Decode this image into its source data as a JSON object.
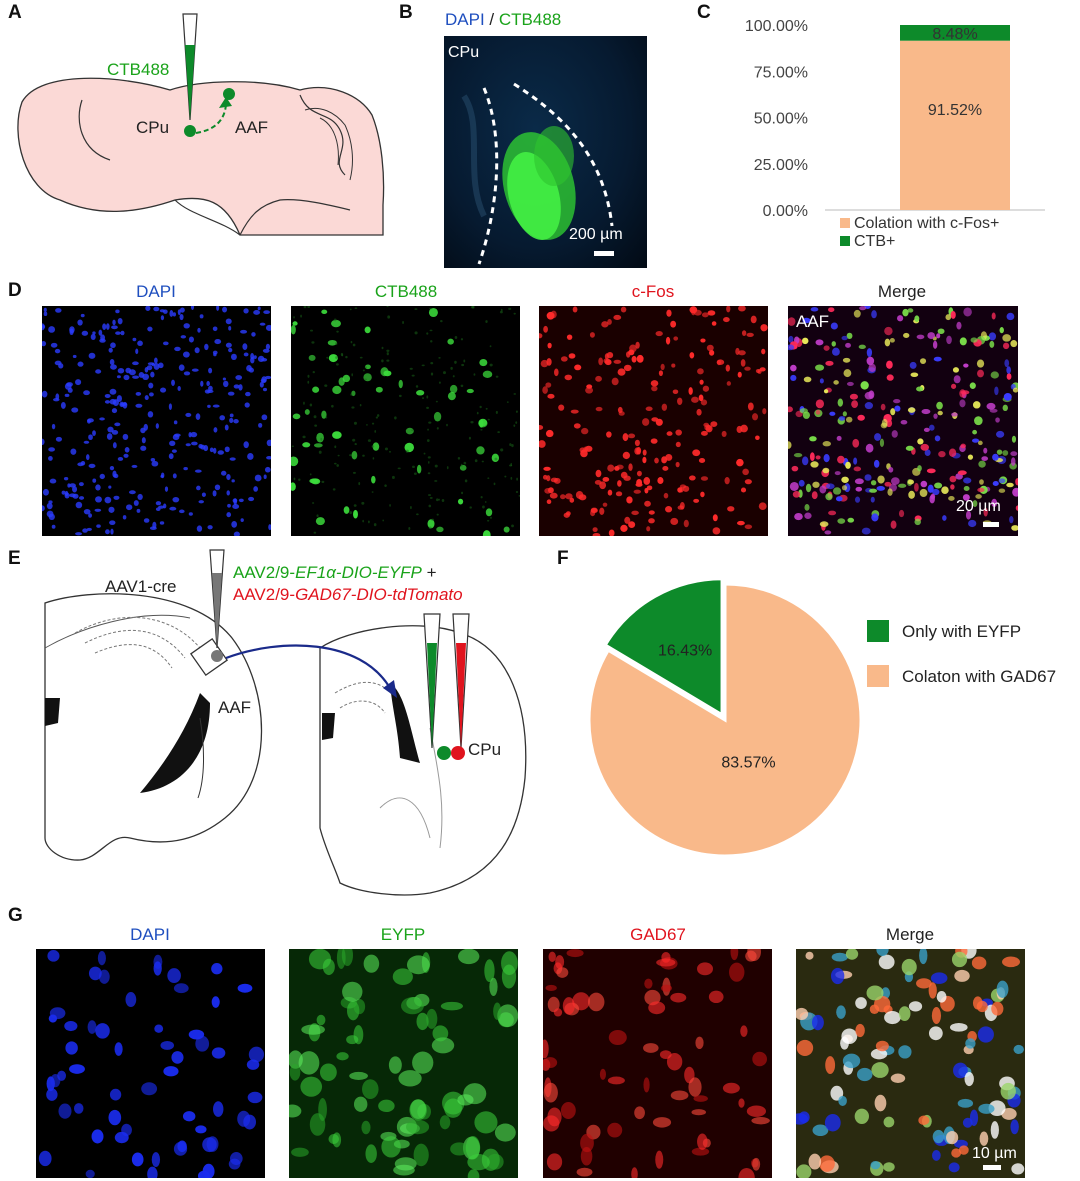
{
  "panels": {
    "A": {
      "letter": "A",
      "labels": {
        "tracer": "CTB488",
        "source": "CPu",
        "target": "AAF"
      }
    },
    "B": {
      "letter": "B",
      "title_dapi": "DAPI",
      "title_sep": " / ",
      "title_ctb": "CTB488",
      "region": "CPu",
      "scale": "200 µm"
    },
    "C": {
      "letter": "C"
    },
    "D": {
      "letter": "D",
      "channels": [
        "DAPI",
        "CTB488",
        "c-Fos",
        "Merge"
      ],
      "region": "AAF",
      "scale": "20 µm"
    },
    "E": {
      "letter": "E",
      "injection_left": "AAV1-cre",
      "virus1_prefix": "AAV2/9-",
      "virus1_italic": "EF1α-DIO-EYFP",
      "virus1_suffix": " +",
      "virus2_prefix": "AAV2/9-",
      "virus2_italic": "GAD67-DIO-tdTomato",
      "region_left": "AAF",
      "region_right": "CPu"
    },
    "F": {
      "letter": "F"
    },
    "G": {
      "letter": "G",
      "channels": [
        "DAPI",
        "EYFP",
        "GAD67",
        "Merge"
      ],
      "scale": "10 µm"
    }
  },
  "colors": {
    "peach": "#f9b98a",
    "green": "#0d8a2a",
    "brain_fill": "#fbd9d6",
    "dapi": "#2a3cff",
    "ctb": "#3cdc3c",
    "fos": "#ff2a2a"
  },
  "chart_data": [
    {
      "type": "bar",
      "panel": "C",
      "stacked": true,
      "categories": [
        ""
      ],
      "series": [
        {
          "name": "Colation with c-Fos+",
          "values": [
            91.52
          ],
          "color": "#f9b98a",
          "label": "91.52%"
        },
        {
          "name": "CTB+",
          "values": [
            8.48
          ],
          "color": "#0d8a2a",
          "label": "8.48%"
        }
      ],
      "yticks": [
        "0.00%",
        "25.00%",
        "50.00%",
        "75.00%",
        "100.00%"
      ],
      "ylim": [
        0,
        100
      ],
      "legend": "bottom"
    },
    {
      "type": "pie",
      "panel": "F",
      "slices": [
        {
          "name": "Only with EYFP",
          "value": 16.43,
          "color": "#0d8a2a",
          "label": "16.43%"
        },
        {
          "name": "Colaton with GAD67",
          "value": 83.57,
          "color": "#f9b98a",
          "label": "83.57%"
        }
      ],
      "legend": "right"
    }
  ]
}
